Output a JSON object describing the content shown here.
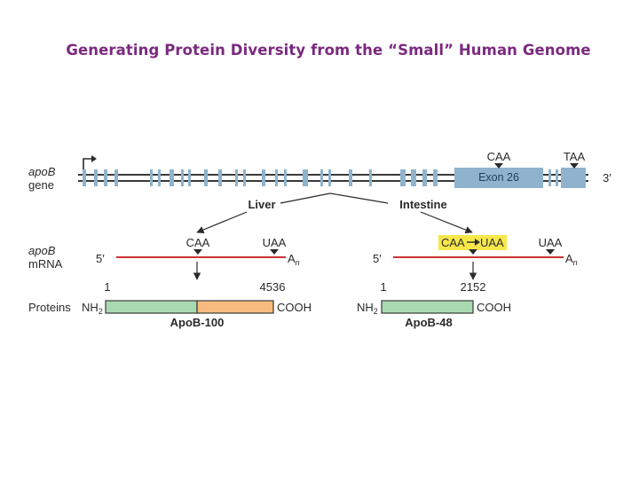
{
  "title": "Generating Protein Diversity from the “Small” Human Genome",
  "colors": {
    "title": "#7b2a7f",
    "exon": "#8fb3cc",
    "mrna_line": "#cc3333",
    "highlight": "#f7e84a",
    "apob100_n": "#a9d9b0",
    "apob100_c": "#f6bb7d",
    "apob48": "#a9d9b0"
  },
  "gene": {
    "label_line1": "apoB",
    "label_line2": "gene",
    "codon_caa": "CAA",
    "codon_taa": "TAA",
    "exon_label": "Exon 26",
    "three_prime": "3′"
  },
  "tissues": {
    "liver": "Liver",
    "intestine": "Intestine"
  },
  "mrna": {
    "label_line1": "apoB",
    "label_line2": "mRNA",
    "five_prime": "5′",
    "polyA_base": "A",
    "polyA_sub": "n",
    "liver": {
      "codon_caa": "CAA",
      "codon_uaa": "UAA"
    },
    "intestine": {
      "edit_from": "CAA",
      "edit_to": "UAA",
      "codon_uaa": "UAA"
    }
  },
  "proteins": {
    "label": "Proteins",
    "nh2_base": "NH",
    "nh2_sub": "2",
    "cooh": "COOH",
    "apob100": {
      "start": "1",
      "end": "4536",
      "name": "ApoB-100"
    },
    "apob48": {
      "start": "1",
      "end": "2152",
      "name": "ApoB-48"
    }
  }
}
